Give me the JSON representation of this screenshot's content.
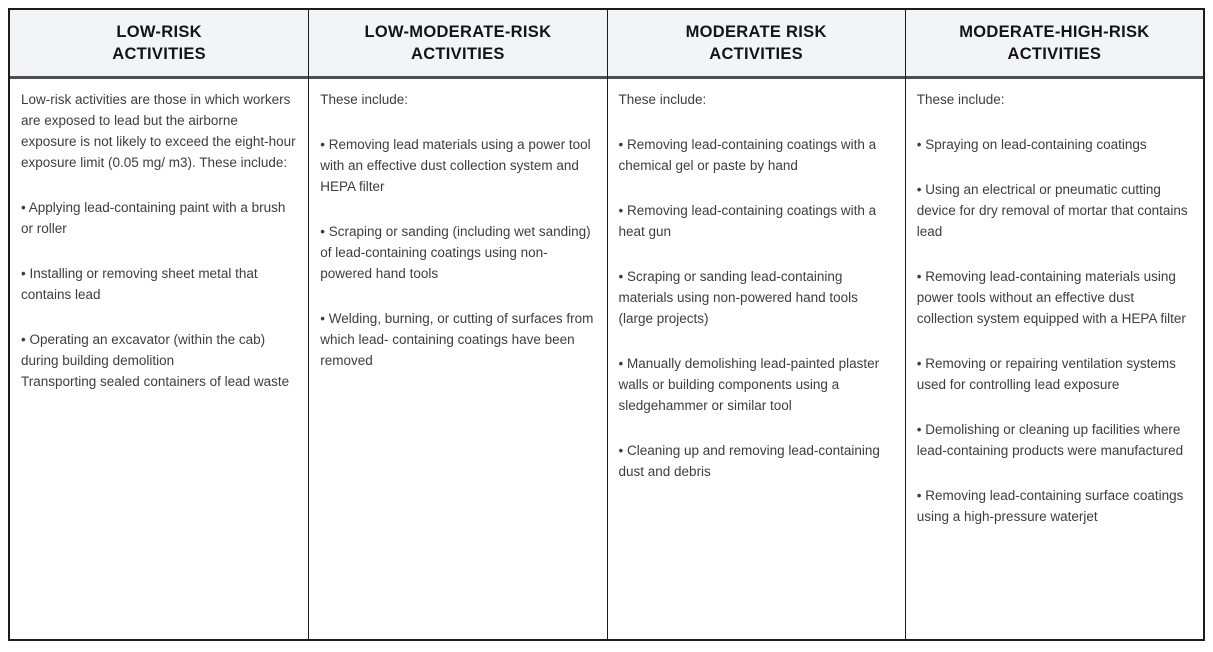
{
  "table": {
    "columns": [
      {
        "header_line1": "LOW-RISK",
        "header_line2": "ACTIVITIES",
        "intro": "Low-risk activities are those in which workers are exposed to lead but the airborne exposure is not likely to exceed the eight-hour exposure limit (0.05 mg/ m3). These include:",
        "bullets": [
          "• Applying lead-containing paint with a brush or roller",
          "• Installing or removing sheet metal that contains lead",
          "• Operating an excavator (within the cab) during building demolition\nTransporting sealed containers of lead waste"
        ]
      },
      {
        "header_line1": "LOW-MODERATE-RISK",
        "header_line2": "ACTIVITIES",
        "intro": "These include:",
        "bullets": [
          "• Removing lead materials using a power tool with an effective dust collection system and HEPA filter",
          "• Scraping or sanding (including wet sanding) of lead-containing coatings using non-powered hand tools",
          "• Welding, burning, or cutting of surfaces from which lead- containing coatings have been removed"
        ]
      },
      {
        "header_line1": "MODERATE RISK",
        "header_line2": "ACTIVITIES",
        "intro": "These include:",
        "bullets": [
          "• Removing lead-containing coatings with a chemical gel or paste by hand",
          "• Removing lead-containing coatings with a heat gun",
          "• Scraping or sanding lead-containing materials using non-powered hand tools (large projects)",
          "• Manually demolishing lead-painted plaster walls or building components using a sledgehammer or similar tool",
          "• Cleaning up and removing lead-containing dust and debris"
        ]
      },
      {
        "header_line1": "MODERATE-HIGH-RISK",
        "header_line2": "ACTIVITIES",
        "intro": "These include:",
        "bullets": [
          "• Spraying on lead-containing coatings",
          "• Using an electrical or pneumatic cutting device for dry removal of mortar that contains lead",
          "• Removing lead-containing materials using power tools without an effective dust collection system equipped with a HEPA filter",
          "• Removing or repairing ventilation systems used for controlling lead exposure",
          "• Demolishing or cleaning up facilities where lead-containing products were manufactured",
          "• Removing lead-containing surface coatings using a high-pressure waterjet"
        ]
      }
    ],
    "colors": {
      "header_background": "#f3f4f7",
      "border": "#1c1c1c",
      "header_rule": "#4e4e4e",
      "body_text": "#3d3d3d",
      "header_text": "#141414"
    }
  }
}
